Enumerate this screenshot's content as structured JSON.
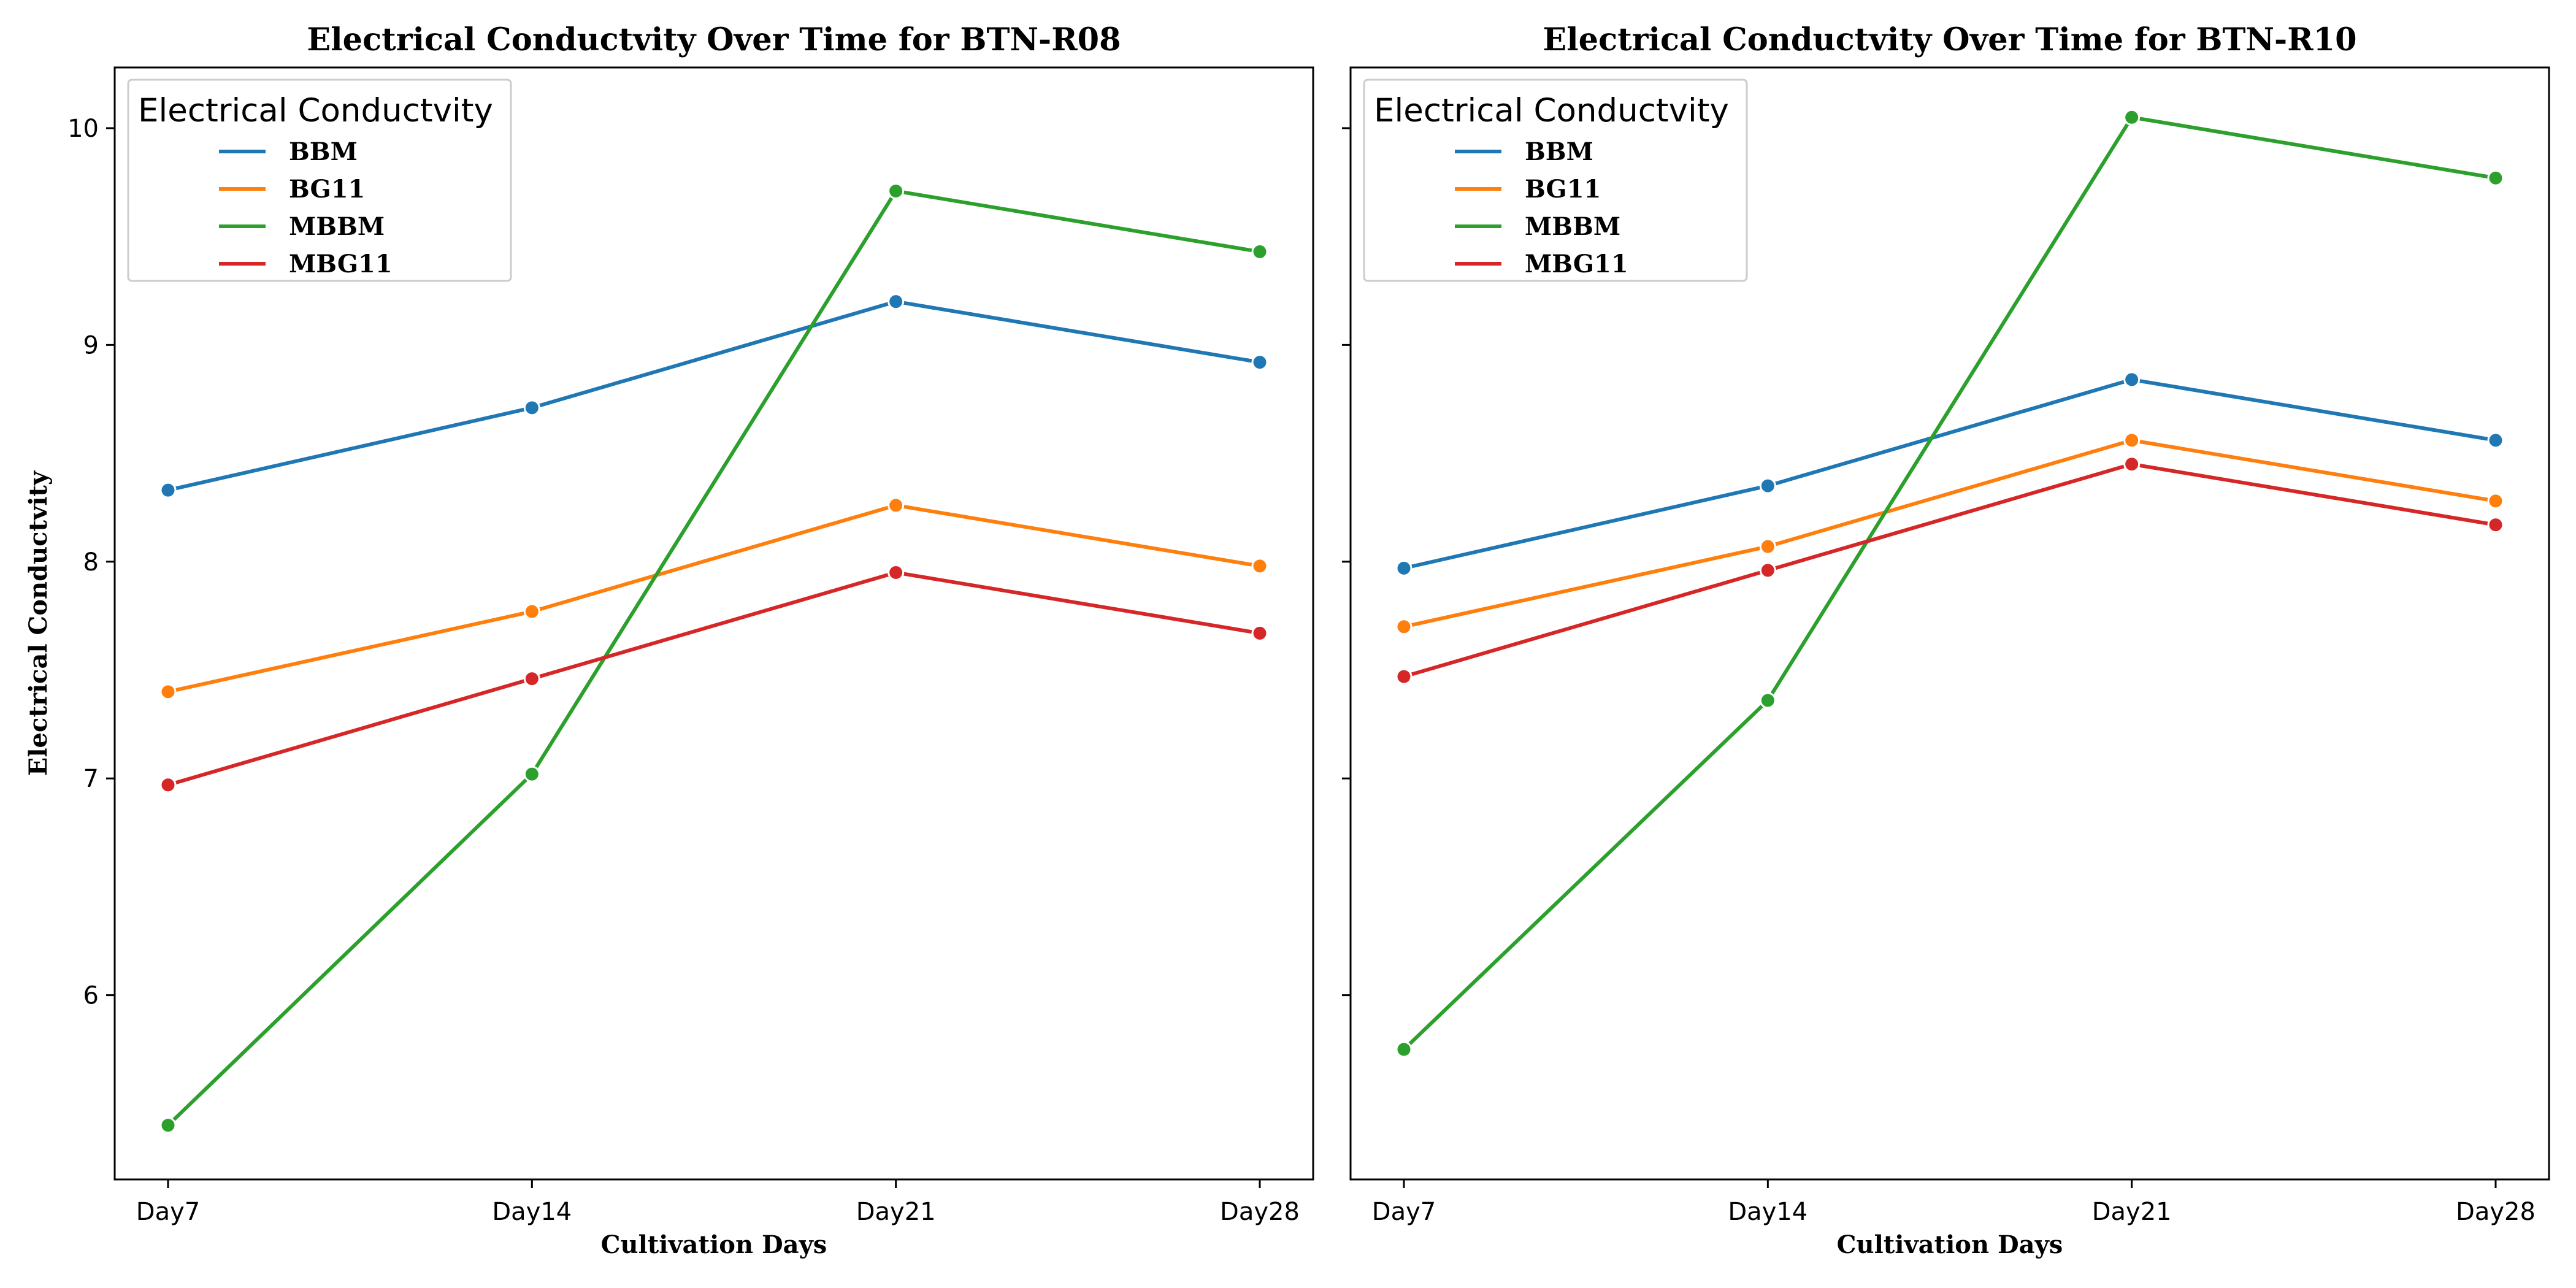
{
  "figure": {
    "charts_count": 2
  },
  "chart_data": [
    {
      "type": "line",
      "title": "Electrical Conductvity Over Time for BTN-R08",
      "xlabel": "Cultivation Days",
      "ylabel": "Electrical Conductvity",
      "categories": [
        "Day7",
        "Day14",
        "Day21",
        "Day28"
      ],
      "ylim": [
        5.15,
        10.28
      ],
      "yticks": [
        6,
        7,
        8,
        9,
        10
      ],
      "grid": false,
      "legend": {
        "title": "Electrical Conductvity",
        "placement": "top-left"
      },
      "series": [
        {
          "name": "BBM",
          "color": "#1f77b4",
          "values": [
            8.33,
            8.71,
            9.2,
            8.92
          ]
        },
        {
          "name": "BG11",
          "color": "#ff7f0e",
          "values": [
            7.4,
            7.77,
            8.26,
            7.98
          ]
        },
        {
          "name": "MBBM",
          "color": "#2ca02c",
          "values": [
            5.4,
            7.02,
            9.71,
            9.43
          ]
        },
        {
          "name": "MBG11",
          "color": "#d62728",
          "values": [
            6.97,
            7.46,
            7.95,
            7.67
          ]
        }
      ]
    },
    {
      "type": "line",
      "title": "Electrical Conductvity Over Time for BTN-R10",
      "xlabel": "Cultivation Days",
      "ylabel": "",
      "categories": [
        "Day7",
        "Day14",
        "Day21",
        "Day28"
      ],
      "ylim": [
        5.15,
        10.28
      ],
      "yticks": [
        6,
        7,
        8,
        9,
        10
      ],
      "shared_y": true,
      "grid": false,
      "legend": {
        "title": "Electrical Conductvity",
        "placement": "top-left"
      },
      "series": [
        {
          "name": "BBM",
          "color": "#1f77b4",
          "values": [
            7.97,
            8.35,
            8.84,
            8.56
          ]
        },
        {
          "name": "BG11",
          "color": "#ff7f0e",
          "values": [
            7.7,
            8.07,
            8.56,
            8.28
          ]
        },
        {
          "name": "MBBM",
          "color": "#2ca02c",
          "values": [
            5.75,
            7.36,
            10.05,
            9.77
          ]
        },
        {
          "name": "MBG11",
          "color": "#d62728",
          "values": [
            7.47,
            7.96,
            8.45,
            8.17
          ]
        }
      ]
    }
  ]
}
